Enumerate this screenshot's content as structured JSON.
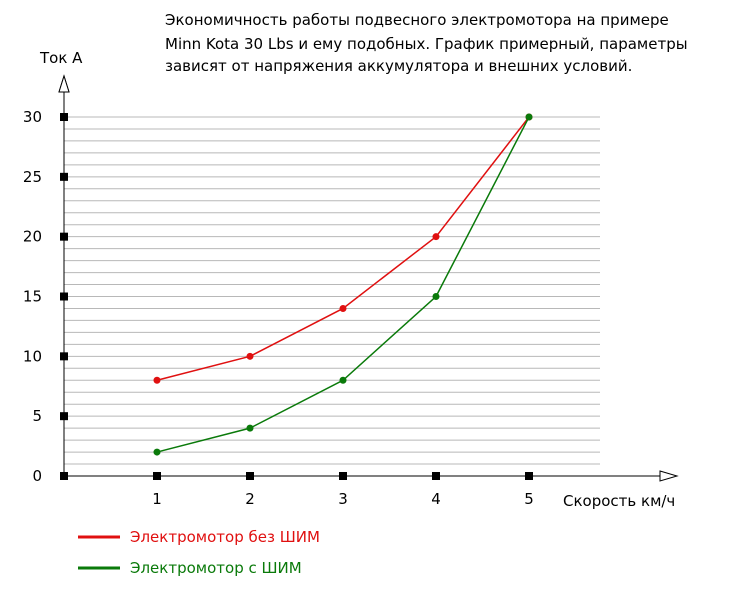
{
  "chart_data": {
    "type": "line",
    "title_lines": [
      "Экономичность работы подвесного электромотора на примере",
      "Minn Kota 30 Lbs и ему подобных. График примерный, параметры",
      "зависят от напряжения аккумулятора и внешних условий."
    ],
    "ylabel": "Ток А",
    "xlabel": "Скорость км/ч",
    "x": [
      1,
      2,
      3,
      4,
      5
    ],
    "xlim": [
      0,
      5.65
    ],
    "ylim": [
      0,
      30
    ],
    "y_ticks": [
      0,
      5,
      10,
      15,
      20,
      25,
      30
    ],
    "x_ticks": [
      1,
      2,
      3,
      4,
      5
    ],
    "grid": "horizontal",
    "grid_step": 1,
    "legend_position": "bottom-left",
    "series": [
      {
        "name": "Электромотор  без ШИМ",
        "color": "#e01010",
        "values": [
          8,
          10,
          14,
          20,
          30
        ]
      },
      {
        "name": "Электромотор с ШИМ",
        "color": "#0a7a0a",
        "values": [
          2,
          4,
          8,
          15,
          30
        ]
      }
    ]
  }
}
